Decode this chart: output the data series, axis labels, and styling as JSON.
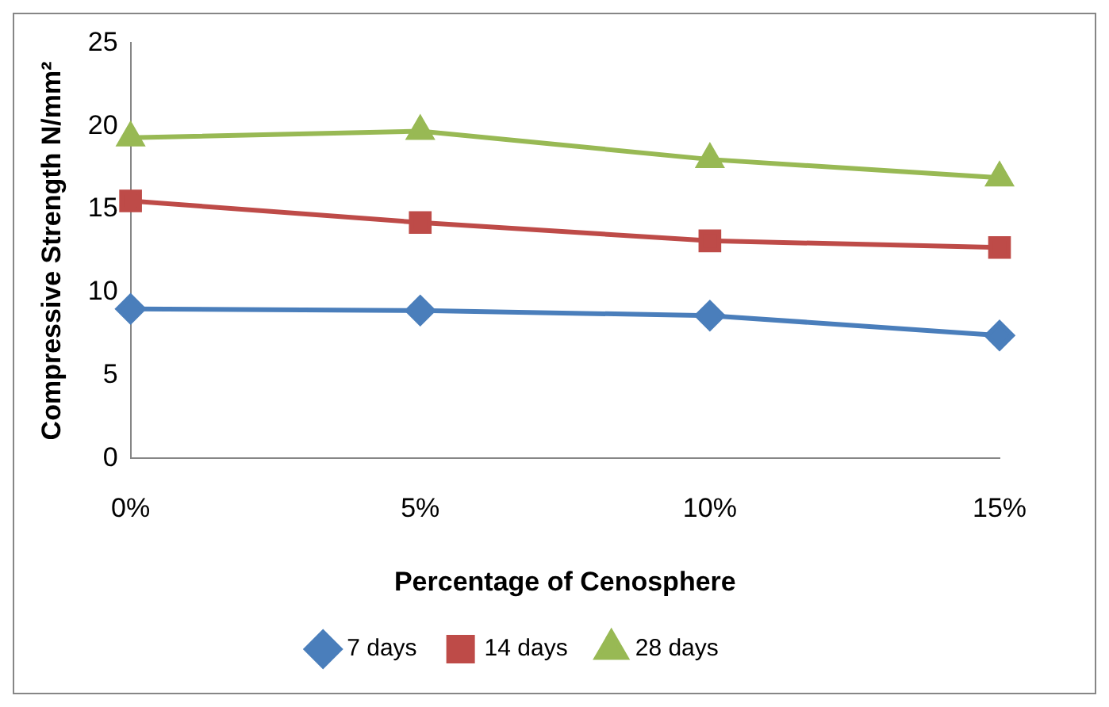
{
  "chart_data": {
    "type": "line",
    "xlabel": "Percentage of Cenosphere",
    "ylabel": "Compressive Strength N/mm²",
    "categories": [
      "0%",
      "5%",
      "10%",
      "15%"
    ],
    "ylim": [
      0,
      25
    ],
    "yticks": [
      0,
      5,
      10,
      15,
      20,
      25
    ],
    "grid": false,
    "legend": "bottom",
    "series": [
      {
        "name": "7 days",
        "color": "#4a7ebb",
        "marker": "diamond",
        "values": [
          9.0,
          8.9,
          8.6,
          7.4
        ]
      },
      {
        "name": "14 days",
        "color": "#be4b48",
        "marker": "square",
        "values": [
          15.5,
          14.2,
          13.1,
          12.7
        ]
      },
      {
        "name": "28 days",
        "color": "#98b954",
        "marker": "triangle",
        "values": [
          19.3,
          19.7,
          18.0,
          16.9
        ]
      }
    ]
  }
}
